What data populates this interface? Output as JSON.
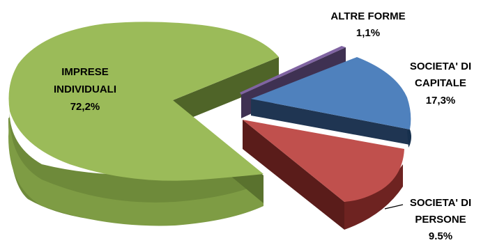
{
  "chart_data": {
    "type": "pie",
    "variant": "3d-exploded",
    "slices": [
      {
        "key": "imprese",
        "label_lines": [
          "IMPRESE",
          "INDIVIDUALI"
        ],
        "value_label": "72,2%",
        "value": 72.2,
        "color": "#9bbb59"
      },
      {
        "key": "altre",
        "label_lines": [
          "ALTRE FORME"
        ],
        "value_label": "1,1%",
        "value": 1.1,
        "color": "#8064a2"
      },
      {
        "key": "capitale",
        "label_lines": [
          "SOCIETA' DI",
          "CAPITALE"
        ],
        "value_label": "17,3%",
        "value": 17.3,
        "color": "#4f81bd"
      },
      {
        "key": "persone",
        "label_lines": [
          "SOCIETA' DI",
          "PERSONE"
        ],
        "value_label": "9.5%",
        "value": 9.5,
        "color": "#c0504d"
      }
    ]
  }
}
